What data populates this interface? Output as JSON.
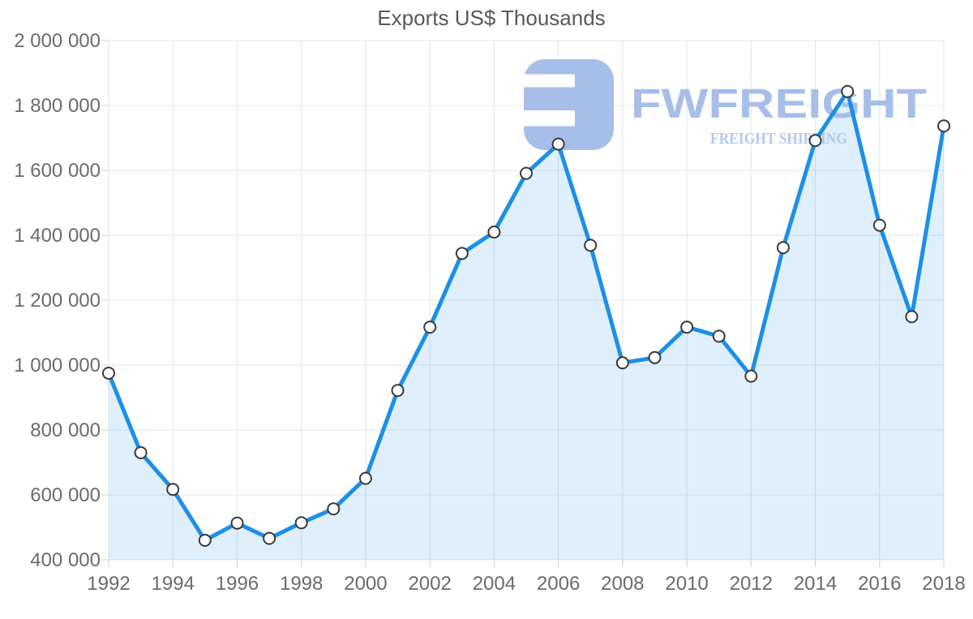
{
  "page": {
    "background": "#ffffff"
  },
  "chart_data": {
    "type": "area",
    "title": "Exports US$ Thousands",
    "xlabel": "",
    "ylabel": "",
    "x": [
      1992,
      1993,
      1994,
      1995,
      1996,
      1997,
      1998,
      1999,
      2000,
      2001,
      2002,
      2003,
      2004,
      2005,
      2006,
      2007,
      2008,
      2009,
      2010,
      2011,
      2012,
      2013,
      2014,
      2015,
      2016,
      2017,
      2018
    ],
    "series": [
      {
        "name": "Exports US$ Thousands",
        "values": [
          975000,
          730000,
          617000,
          460000,
          513000,
          466000,
          514000,
          557000,
          651000,
          922000,
          1117000,
          1344000,
          1410000,
          1591000,
          1681000,
          1369000,
          1007000,
          1023000,
          1117000,
          1089000,
          966000,
          1362000,
          1692000,
          1843000,
          1431000,
          1149000,
          1737000
        ]
      }
    ],
    "ylim": [
      400000,
      2000000
    ],
    "y_tick_step": 200000,
    "y_tick_labels": [
      "400 000",
      "600 000",
      "800 000",
      "1 000 000",
      "1 200 000",
      "1 400 000",
      "1 600 000",
      "1 800 000",
      "2 000 000"
    ],
    "x_tick_labels": [
      "1992",
      "1994",
      "1996",
      "1998",
      "2000",
      "2002",
      "2004",
      "2006",
      "2008",
      "2010",
      "2012",
      "2014",
      "2016",
      "2018"
    ],
    "grid": true,
    "legend": "none",
    "colors": {
      "line": "#1c8fe9",
      "fill": "rgba(28,143,233,0.14)",
      "marker_fill": "#ffffff",
      "marker_stroke": "#3a3a3a",
      "grid": "#e4e6e8",
      "tick": "#cdd0d3",
      "axis_text": "#6a6b6d",
      "title_text": "#58595b"
    }
  },
  "watermark": {
    "logo_icon": "fwfreight-logo",
    "title": "FWFREIGHT",
    "subtitle": "FREIGHT SHIPPING",
    "color": "#a7bee9",
    "subtitle_color": "#b4c9f0"
  }
}
